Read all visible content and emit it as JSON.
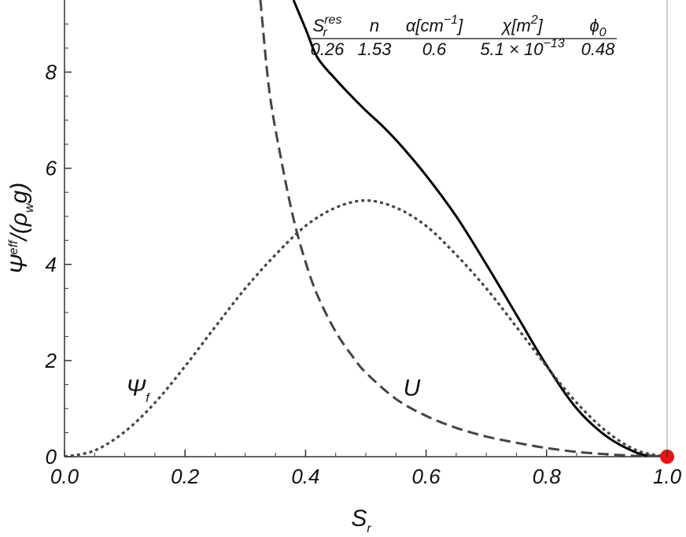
{
  "chart_data": {
    "type": "line",
    "xlabel": {
      "main": "S",
      "sub": "r"
    },
    "ylabel": {
      "main": "Ψ",
      "sup": "eff",
      "rest": "/(ρ",
      "sub": "w",
      "tail": "g)"
    },
    "xlim": [
      0.0,
      1.0
    ],
    "ylim": [
      0,
      9.5
    ],
    "x_ticks": [
      0.0,
      0.2,
      0.4,
      0.6,
      0.8,
      1.0
    ],
    "x_tick_labels": [
      "0.0",
      "0.2",
      "0.4",
      "0.6",
      "0.8",
      "1.0"
    ],
    "y_ticks": [
      0,
      2,
      4,
      6,
      8
    ],
    "y_tick_labels": [
      "0",
      "2",
      "4",
      "6",
      "8"
    ],
    "grid": false,
    "series": [
      {
        "style": "solid",
        "color": "#000000",
        "x": [
          0.38,
          0.4,
          0.42,
          0.45,
          0.48,
          0.5,
          0.53,
          0.56,
          0.6,
          0.65,
          0.7,
          0.75,
          0.8,
          0.85,
          0.9,
          0.95,
          0.98,
          1.0
        ],
        "y": [
          9.5,
          8.9,
          8.3,
          7.85,
          7.45,
          7.2,
          6.85,
          6.45,
          5.85,
          5.0,
          4.0,
          2.95,
          1.9,
          1.0,
          0.42,
          0.08,
          0.01,
          0.0
        ]
      },
      {
        "name": "U",
        "style": "dashed",
        "color": "#444444",
        "x": [
          0.325,
          0.34,
          0.36,
          0.38,
          0.4,
          0.42,
          0.45,
          0.48,
          0.5,
          0.55,
          0.6,
          0.65,
          0.7,
          0.75,
          0.8,
          0.85,
          0.9,
          0.95,
          1.0
        ],
        "y": [
          9.5,
          7.6,
          6.15,
          4.95,
          4.05,
          3.35,
          2.6,
          2.05,
          1.75,
          1.2,
          0.85,
          0.6,
          0.42,
          0.29,
          0.18,
          0.1,
          0.05,
          0.015,
          0.0
        ]
      },
      {
        "name": "Ψf",
        "style": "dotted",
        "color": "#444444",
        "x": [
          0.0,
          0.05,
          0.1,
          0.15,
          0.2,
          0.25,
          0.3,
          0.35,
          0.4,
          0.45,
          0.5,
          0.55,
          0.6,
          0.65,
          0.7,
          0.75,
          0.8,
          0.85,
          0.9,
          0.95,
          1.0
        ],
        "y": [
          0.0,
          0.13,
          0.52,
          1.12,
          1.88,
          2.7,
          3.5,
          4.2,
          4.8,
          5.18,
          5.33,
          5.18,
          4.8,
          4.2,
          3.5,
          2.7,
          1.88,
          1.12,
          0.52,
          0.13,
          0.0
        ]
      }
    ],
    "marker": {
      "x": 1.0,
      "y": 0.0,
      "color": "#ee1111"
    },
    "vertical_line": {
      "x": 1.0,
      "color": "#bbbbbb"
    },
    "annotations": [
      {
        "main": "Ψ",
        "sub": "f",
        "x": 0.05,
        "y": 1.3
      },
      {
        "main": "U",
        "sub": "",
        "x": 0.51,
        "y": 1.3
      }
    ],
    "param_table": {
      "headers": [
        {
          "main": "S",
          "sub": "r",
          "sup": "res"
        },
        {
          "main": "n",
          "sub": "",
          "sup": ""
        },
        {
          "main": "α[cm",
          "sup": "−1",
          "tail": "]"
        },
        {
          "main": "χ[m",
          "sup": "2",
          "tail": "]"
        },
        {
          "main": "ϕ",
          "sub": "0",
          "sup": ""
        }
      ],
      "values": [
        {
          "main": "0.26"
        },
        {
          "main": "1.53"
        },
        {
          "main": "0.6"
        },
        {
          "main": "5.1 × 10",
          "sup": "−13"
        },
        {
          "main": "0.48"
        }
      ]
    }
  }
}
